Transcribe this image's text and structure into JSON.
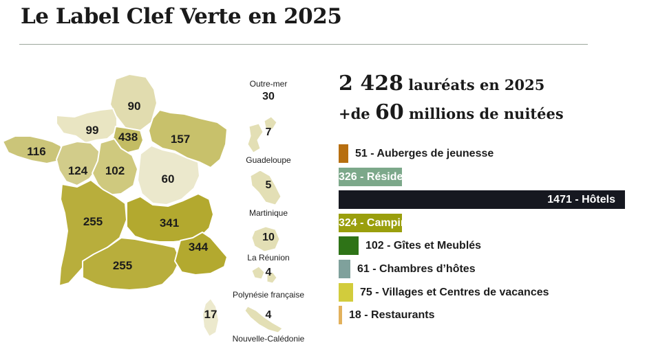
{
  "title": "Le Label Clef Verte en 2025",
  "summary": {
    "laureats_value": "2 428",
    "laureats_text": "lauréats en 2025",
    "nuitees_prefix": "+de",
    "nuitees_value": "60",
    "nuitees_text": "millions de nuitées"
  },
  "chart_data": [
    {
      "type": "map",
      "regions": [
        {
          "name": "Hauts-de-France",
          "value": 90,
          "color": "#e1dcaf"
        },
        {
          "name": "Normandie",
          "value": 99,
          "color": "#e9e5c2"
        },
        {
          "name": "Île-de-France",
          "value": 438,
          "color": "#c3bc63"
        },
        {
          "name": "Grand Est",
          "value": 157,
          "color": "#c8c16b"
        },
        {
          "name": "Bretagne",
          "value": 116,
          "color": "#cbc579"
        },
        {
          "name": "Pays de la Loire",
          "value": 124,
          "color": "#d2cc8a"
        },
        {
          "name": "Centre-Val de Loire",
          "value": 102,
          "color": "#cfc97e"
        },
        {
          "name": "Bourgogne-Franche-Comté",
          "value": 60,
          "color": "#ebe8cc"
        },
        {
          "name": "Nouvelle-Aquitaine",
          "value": 255,
          "color": "#b8ae3c"
        },
        {
          "name": "Auvergne-Rhône-Alpes",
          "value": 341,
          "color": "#b3a92f"
        },
        {
          "name": "Occitanie",
          "value": 255,
          "color": "#b8ae3c"
        },
        {
          "name": "Provence-Alpes-Côte d'Azur",
          "value": 344,
          "color": "#b3a92f"
        },
        {
          "name": "Corse",
          "value": 17,
          "color": "#ece9cd"
        }
      ],
      "outre_mer": {
        "label": "Outre-mer",
        "total": 30,
        "territories": [
          {
            "name": "Guadeloupe",
            "value": 7
          },
          {
            "name": "Martinique",
            "value": 5
          },
          {
            "name": "La Réunion",
            "value": 10
          },
          {
            "name": "Polynésie française",
            "value": 4
          },
          {
            "name": "Nouvelle-Calédonie",
            "value": 4
          }
        ]
      }
    },
    {
      "type": "bar",
      "orientation": "horizontal",
      "categories": [
        "Auberges de jeunesse",
        "Résidences de tourisme",
        "Hôtels",
        "Campings",
        "Gîtes et Meublés",
        "Chambres d’hôtes",
        "Villages et Centres de vacances",
        "Restaurants"
      ],
      "values": [
        51,
        326,
        1471,
        324,
        102,
        61,
        75,
        18
      ],
      "colors": [
        "#b76f10",
        "#7ca88a",
        "#161820",
        "#9a9f0d",
        "#2e7317",
        "#7fa19c",
        "#d2cc3c",
        "#e2b15c"
      ],
      "label_inside": [
        false,
        true,
        true,
        true,
        false,
        false,
        false,
        false
      ],
      "label_color_inside": [
        "",
        "#ffffff",
        "#ffffff",
        "#ffffff",
        "",
        "",
        "",
        ""
      ]
    }
  ]
}
